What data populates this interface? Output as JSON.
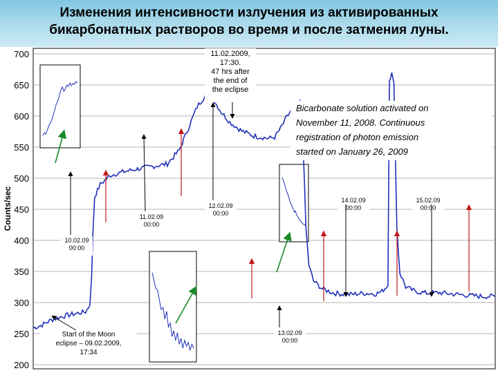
{
  "title": "Изменения интенсивности излучения из активированных\nбикарбонатных растворов во время и после затмения луны.",
  "colors": {
    "line": "#1f2fb8",
    "red_arrow": "#c21818",
    "green_arrow": "#1a8a2a",
    "header": "#9fd3e8"
  },
  "chart_data": {
    "type": "line",
    "ylabel": "Counts/sec",
    "ylim": [
      200,
      700
    ],
    "yticks": [
      200,
      250,
      300,
      350,
      400,
      450,
      500,
      550,
      600,
      650,
      700
    ],
    "grid": true,
    "x_unit": "hours since 09.02.2009 00:00",
    "xlim": [
      0,
      155
    ],
    "series": [
      {
        "points": [
          [
            0.0,
            259
          ],
          [
            3.0,
            264
          ],
          [
            6.0,
            272
          ],
          [
            10.0,
            278
          ],
          [
            14.0,
            282
          ],
          [
            17.57,
            285
          ],
          [
            18.5,
            292
          ],
          [
            19.0,
            298
          ],
          [
            19.6,
            340
          ],
          [
            20.0,
            410
          ],
          [
            20.6,
            470
          ],
          [
            22.5,
            490
          ],
          [
            26.0,
            505
          ],
          [
            30.0,
            510
          ],
          [
            35.0,
            515
          ],
          [
            40.0,
            519
          ],
          [
            45.0,
            523
          ],
          [
            49.0,
            545
          ],
          [
            52.0,
            580
          ],
          [
            55.0,
            615
          ],
          [
            57.0,
            628
          ],
          [
            58.5,
            645
          ],
          [
            60.0,
            630
          ],
          [
            63.0,
            607
          ],
          [
            66.0,
            590
          ],
          [
            70.0,
            576
          ],
          [
            74.0,
            568
          ],
          [
            79.0,
            564
          ],
          [
            81.0,
            566
          ],
          [
            83.0,
            580
          ],
          [
            85.0,
            598
          ],
          [
            87.0,
            612
          ],
          [
            89.5,
            622
          ],
          [
            90.5,
            560
          ],
          [
            91.5,
            420
          ],
          [
            92.5,
            360
          ],
          [
            94.0,
            335
          ],
          [
            97.0,
            322
          ],
          [
            101.0,
            315
          ],
          [
            106.0,
            313
          ],
          [
            111.0,
            315
          ],
          [
            115.0,
            314
          ],
          [
            117.0,
            318
          ],
          [
            119.0,
            328
          ],
          [
            119.5,
            660
          ],
          [
            120.3,
            668
          ],
          [
            121.0,
            650
          ],
          [
            121.4,
            560
          ],
          [
            122.0,
            420
          ],
          [
            123.0,
            348
          ],
          [
            125.0,
            325
          ],
          [
            128.0,
            318
          ],
          [
            132.0,
            315
          ],
          [
            136.0,
            316
          ],
          [
            140.0,
            314
          ],
          [
            145.0,
            312
          ],
          [
            150.0,
            310
          ],
          [
            155.0,
            310
          ]
        ]
      }
    ],
    "inset_series": [
      {
        "name": "inset-1",
        "values": [
          12,
          16,
          14,
          20,
          26,
          30,
          35,
          42,
          50,
          58,
          62,
          70,
          78,
          82,
          76,
          80,
          85,
          83,
          88,
          84,
          87,
          86,
          90,
          88
        ]
      },
      {
        "name": "inset-2",
        "values": [
          95,
          90,
          86,
          80,
          74,
          70,
          66,
          60,
          55,
          52,
          48,
          44,
          40,
          42,
          36,
          34,
          30,
          28,
          26,
          24,
          22,
          21,
          20,
          19
        ]
      },
      {
        "name": "inset-3",
        "values": [
          88,
          80,
          72,
          70,
          60,
          50,
          52,
          40,
          48,
          32,
          36,
          22,
          28,
          18,
          26,
          14,
          20,
          10,
          18,
          12,
          16,
          8,
          14,
          10
        ]
      }
    ]
  },
  "annotations": {
    "eclipse_start": "Start of the Moon\neclipse – 09.02.2009,\n17:34",
    "date_1002": "10.02.09\n00:00",
    "date_1102": "11.02.09\n00:00",
    "date_1202": "12.02.09\n00:00",
    "date_1302": "13.02.09\n00:00",
    "date_1402": "14.02.09\n00:00",
    "date_1502": "15.02.09\n00:00",
    "after_eclipse": "11.02.2009,\n17:30.\n47 hrs after\nthe end of\nthe eclipse",
    "solution_note": "Bicarbonate solution activated on\nNovember  11,  2008. Continuous\nregistration of photon emission\nstarted on January  26, 2009"
  }
}
